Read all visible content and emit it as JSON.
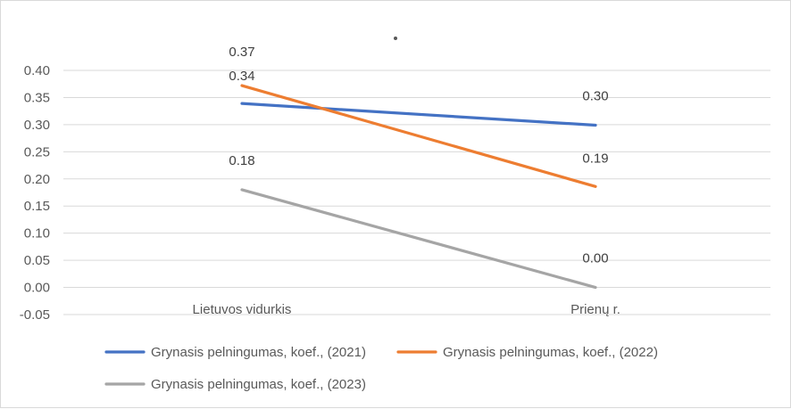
{
  "chart_data": {
    "type": "line",
    "title": "",
    "xlabel": "",
    "ylabel": "",
    "categories": [
      "Lietuvos vidurkis",
      "Prienų r."
    ],
    "ylim": [
      -0.05,
      0.4
    ],
    "yticks": [
      "0.40",
      "0.35",
      "0.30",
      "0.25",
      "0.20",
      "0.15",
      "0.10",
      "0.05",
      "0.00",
      "-0.05"
    ],
    "ytick_values": [
      0.4,
      0.35,
      0.3,
      0.25,
      0.2,
      0.15,
      0.1,
      0.05,
      0.0,
      -0.05
    ],
    "grid": true,
    "legend_position": "bottom",
    "series": [
      {
        "name": "Grynasis pelningumas, koef., (2021)",
        "color": "#4472c4",
        "values": [
          0.339,
          0.299
        ],
        "labels": [
          "0.34",
          "0.30"
        ]
      },
      {
        "name": "Grynasis pelningumas, koef., (2022)",
        "color": "#ed7d31",
        "values": [
          0.372,
          0.186
        ],
        "labels": [
          "0.37",
          "0.19"
        ]
      },
      {
        "name": "Grynasis pelningumas, koef., (2023)",
        "color": "#a5a5a5",
        "values": [
          0.18,
          0.0
        ],
        "labels": [
          "0.18",
          "0.00"
        ]
      }
    ]
  }
}
